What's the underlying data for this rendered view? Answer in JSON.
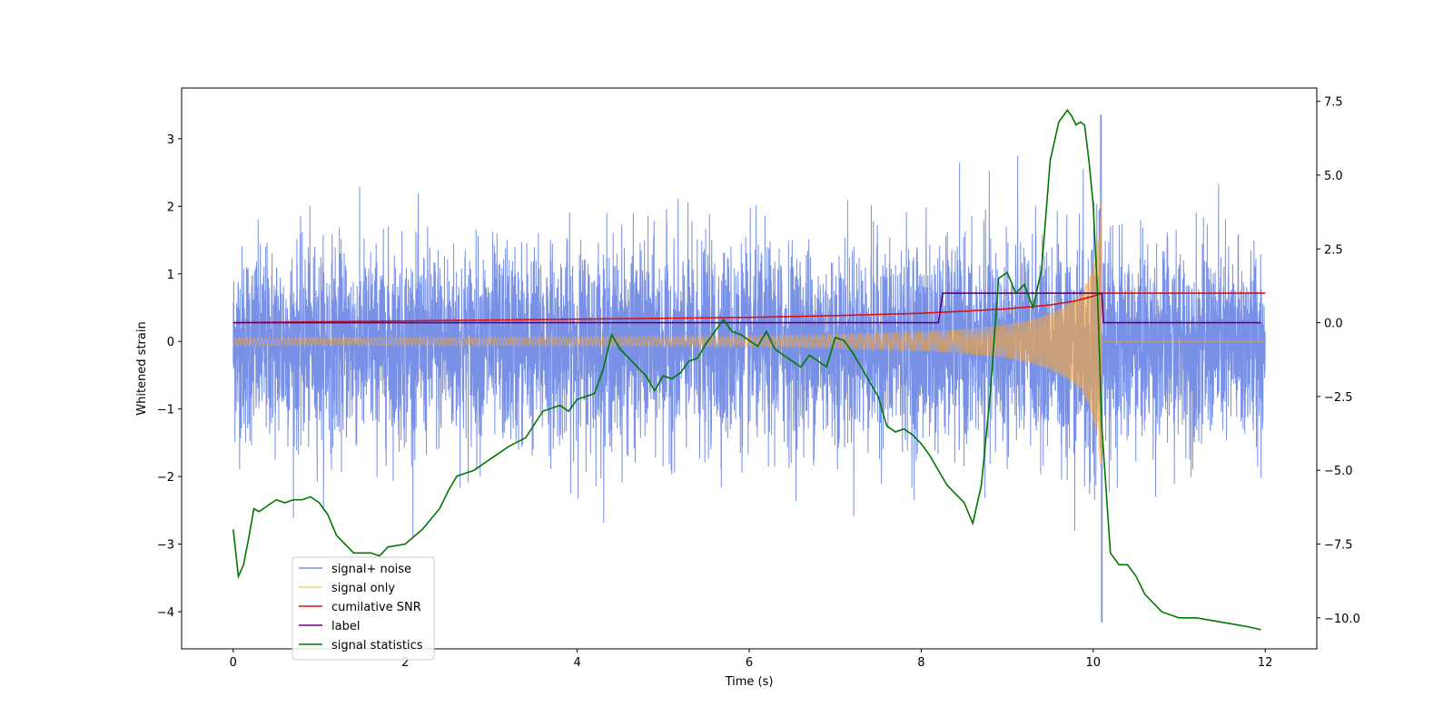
{
  "chart_data": {
    "type": "line",
    "title": "",
    "xlabel": "Time (s)",
    "ylabel": "Whitened strain",
    "y2label": "",
    "xlim": [
      -0.6,
      12.6
    ],
    "ylim": [
      -4.55,
      3.75
    ],
    "y2lim": [
      -11.05,
      7.95
    ],
    "x_ticks": [
      0,
      2,
      4,
      6,
      8,
      10,
      12
    ],
    "x_tick_labels": [
      "0",
      "2",
      "4",
      "6",
      "8",
      "10",
      "12"
    ],
    "y_ticks": [
      3,
      2,
      1,
      0,
      -1,
      -2,
      -3,
      -4
    ],
    "y_tick_labels": [
      "3",
      "2",
      "1",
      "0",
      "−1",
      "−2",
      "−3",
      "−4"
    ],
    "y2_ticks": [
      7.5,
      5.0,
      2.5,
      0.0,
      -2.5,
      -5.0,
      -7.5,
      -10.0
    ],
    "y2_tick_labels": [
      "7.5",
      "5.0",
      "2.5",
      "0.0",
      "−2.5",
      "−5.0",
      "−7.5",
      "−10.0"
    ],
    "grid": false,
    "legend_position": "lower-left",
    "colors": {
      "signal_noise": "#4466dd",
      "signal_only": "#ffaa33",
      "snr": "#dd1111",
      "label": "#660077",
      "stats": "#007700"
    },
    "series": [
      {
        "name": "signal+ noise",
        "axis": "left",
        "color": "#4466dd",
        "description_values": {
          "x_range": [
            0,
            12
          ],
          "approx_envelope_top": [
            [
              0,
              1.9
            ],
            [
              2,
              2.2
            ],
            [
              4,
              2.3
            ],
            [
              6,
              2.3
            ],
            [
              8,
              2.2
            ],
            [
              10,
              2.9
            ],
            [
              10.1,
              3.4
            ],
            [
              12,
              1.9
            ]
          ],
          "approx_envelope_bottom": [
            [
              0,
              -1.9
            ],
            [
              2,
              -2.2
            ],
            [
              4,
              -2.3
            ],
            [
              6,
              -2.4
            ],
            [
              8,
              -2.3
            ],
            [
              10,
              -2.9
            ],
            [
              10.1,
              -4.15
            ],
            [
              12,
              -2.3
            ]
          ]
        }
      },
      {
        "name": "signal only",
        "axis": "left",
        "color": "#ffaa33",
        "envelope": {
          "x": [
            0,
            2,
            4,
            6,
            7,
            8,
            8.5,
            9,
            9.3,
            9.5,
            9.7,
            9.85,
            9.95,
            10.05,
            10.1
          ],
          "amp": [
            0.06,
            0.06,
            0.07,
            0.08,
            0.1,
            0.14,
            0.18,
            0.25,
            0.33,
            0.42,
            0.55,
            0.7,
            0.95,
            1.4,
            2.2
          ]
        }
      },
      {
        "name": "cumilative SNR",
        "axis": "right",
        "color": "#dd1111",
        "x": [
          0,
          2,
          4,
          6,
          7,
          8,
          8.5,
          9,
          9.5,
          9.8,
          10,
          10.1,
          12
        ],
        "y": [
          0.0,
          0.06,
          0.12,
          0.18,
          0.24,
          0.32,
          0.39,
          0.47,
          0.6,
          0.74,
          0.9,
          1.0,
          1.0
        ]
      },
      {
        "name": "label",
        "axis": "right",
        "color": "#660077",
        "x": [
          0,
          8.2,
          8.25,
          10.1,
          10.12,
          11.95
        ],
        "y": [
          0,
          0,
          1,
          1,
          0,
          0
        ]
      },
      {
        "name": "signal statistics",
        "axis": "right",
        "color": "#007700",
        "x": [
          0,
          0.06,
          0.12,
          0.18,
          0.24,
          0.3,
          0.4,
          0.5,
          0.6,
          0.7,
          0.8,
          0.9,
          1.0,
          1.1,
          1.2,
          1.4,
          1.6,
          1.7,
          1.8,
          2.0,
          2.2,
          2.4,
          2.5,
          2.6,
          2.7,
          2.8,
          2.9,
          3.0,
          3.2,
          3.4,
          3.6,
          3.8,
          3.9,
          4.0,
          4.1,
          4.2,
          4.3,
          4.4,
          4.5,
          4.6,
          4.7,
          4.8,
          4.9,
          5.0,
          5.1,
          5.2,
          5.3,
          5.4,
          5.5,
          5.6,
          5.7,
          5.8,
          5.9,
          6.0,
          6.1,
          6.2,
          6.3,
          6.4,
          6.5,
          6.6,
          6.7,
          6.8,
          6.9,
          7.0,
          7.1,
          7.2,
          7.3,
          7.4,
          7.5,
          7.6,
          7.7,
          7.8,
          7.9,
          8.0,
          8.1,
          8.2,
          8.3,
          8.4,
          8.5,
          8.6,
          8.7,
          8.8,
          8.9,
          9.0,
          9.1,
          9.2,
          9.3,
          9.4,
          9.5,
          9.6,
          9.7,
          9.75,
          9.8,
          9.85,
          9.9,
          9.95,
          10.0,
          10.05,
          10.1,
          10.2,
          10.3,
          10.4,
          10.5,
          10.6,
          10.8,
          11.0,
          11.2,
          11.4,
          11.6,
          11.8,
          11.95
        ],
        "y": [
          -7.0,
          -8.6,
          -8.2,
          -7.3,
          -6.3,
          -6.4,
          -6.2,
          -6.0,
          -6.1,
          -6.0,
          -6.0,
          -5.9,
          -6.1,
          -6.5,
          -7.2,
          -7.8,
          -7.8,
          -7.9,
          -7.6,
          -7.5,
          -7.0,
          -6.3,
          -5.7,
          -5.2,
          -5.1,
          -5.0,
          -4.8,
          -4.6,
          -4.2,
          -3.9,
          -3.0,
          -2.8,
          -3.0,
          -2.6,
          -2.5,
          -2.4,
          -1.6,
          -0.4,
          -0.9,
          -1.2,
          -1.5,
          -1.8,
          -2.3,
          -1.8,
          -1.9,
          -1.7,
          -1.3,
          -1.2,
          -0.7,
          -0.3,
          0.1,
          -0.3,
          -0.4,
          -0.6,
          -0.8,
          -0.3,
          -0.9,
          -1.1,
          -1.3,
          -1.5,
          -1.1,
          -1.3,
          -1.5,
          -0.5,
          -0.6,
          -1.0,
          -1.5,
          -2.0,
          -2.5,
          -3.5,
          -3.7,
          -3.6,
          -3.8,
          -4.1,
          -4.5,
          -5.0,
          -5.5,
          -5.8,
          -6.1,
          -6.8,
          -5.5,
          -2.5,
          1.5,
          1.7,
          1.0,
          1.3,
          0.5,
          1.8,
          5.5,
          6.8,
          7.2,
          7.0,
          6.7,
          6.8,
          6.7,
          5.5,
          4.0,
          1.0,
          -3.5,
          -7.8,
          -8.2,
          -8.2,
          -8.6,
          -9.2,
          -9.8,
          -10.0,
          -10.0,
          -10.1,
          -10.2,
          -10.3,
          -10.4
        ]
      }
    ]
  },
  "legend": {
    "items": [
      {
        "label": "signal+ noise",
        "color": "#4466dd"
      },
      {
        "label": "signal only",
        "color": "#ffaa33"
      },
      {
        "label": "cumilative SNR",
        "color": "#dd1111"
      },
      {
        "label": "label",
        "color": "#660077"
      },
      {
        "label": "signal statistics",
        "color": "#007700"
      }
    ]
  }
}
